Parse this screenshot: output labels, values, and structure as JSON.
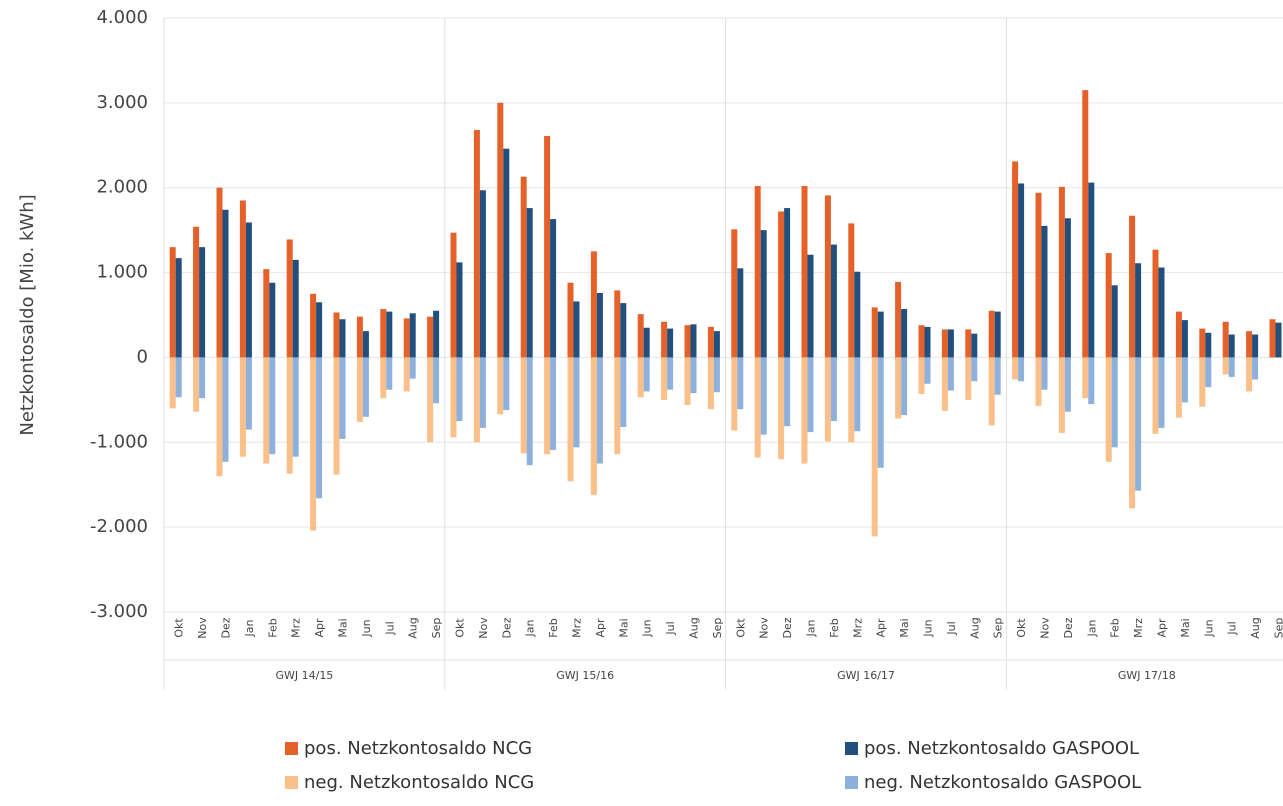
{
  "chart_data": {
    "type": "bar",
    "y_label": "Netzkontosaldo [Mio. kWh]",
    "categories": [
      "Okt",
      "Nov",
      "Dez",
      "Jan",
      "Feb",
      "Mrz",
      "Apr",
      "Mai",
      "Jun",
      "Jul",
      "Aug",
      "Sep",
      "Okt",
      "Nov",
      "Dez",
      "Jan",
      "Feb",
      "Mrz",
      "Apr",
      "Mai",
      "Jun",
      "Jul",
      "Aug",
      "Sep",
      "Okt",
      "Nov",
      "Dez",
      "Jan",
      "Feb",
      "Mrz",
      "Apr",
      "Mai",
      "Jun",
      "Jul",
      "Aug",
      "Sep",
      "Okt",
      "Nov",
      "Dez",
      "Jan",
      "Feb",
      "Mrz",
      "Apr",
      "Mai",
      "Jun",
      "Jul",
      "Aug",
      "Sep"
    ],
    "groups": [
      "GWJ 14/15",
      "GWJ 15/16",
      "GWJ 16/17",
      "GWJ 17/18"
    ],
    "series": [
      {
        "name": "pos. Netzkontosaldo NCG",
        "color": "#e4622a",
        "values": [
          1300,
          1540,
          2000,
          1850,
          1040,
          1390,
          750,
          530,
          480,
          570,
          460,
          480,
          1470,
          2680,
          3000,
          2130,
          2610,
          880,
          1250,
          790,
          510,
          420,
          380,
          360,
          1510,
          2020,
          1720,
          2020,
          1910,
          1580,
          590,
          890,
          380,
          330,
          330,
          550,
          2310,
          1940,
          2010,
          3150,
          1230,
          1670,
          1270,
          540,
          340,
          420,
          310,
          450
        ]
      },
      {
        "name": "pos. Netzkontosaldo GASPOOL",
        "color": "#21507f",
        "values": [
          1170,
          1300,
          1740,
          1590,
          880,
          1150,
          650,
          450,
          310,
          540,
          520,
          550,
          1120,
          1970,
          2460,
          1760,
          1630,
          660,
          760,
          640,
          350,
          340,
          390,
          310,
          1050,
          1500,
          1760,
          1210,
          1330,
          1010,
          540,
          570,
          360,
          330,
          280,
          540,
          2050,
          1550,
          1640,
          2060,
          850,
          1110,
          1060,
          440,
          290,
          270,
          270,
          410
        ]
      },
      {
        "name": "neg. Netzkontosaldo NCG",
        "color": "#fbbf8a",
        "values": [
          -600,
          -640,
          -1400,
          -1170,
          -1250,
          -1370,
          -2040,
          -1380,
          -760,
          -480,
          -400,
          -1000,
          -940,
          -1000,
          -670,
          -1130,
          -1140,
          -1460,
          -1620,
          -1140,
          -470,
          -500,
          -560,
          -610,
          -860,
          -1180,
          -1200,
          -1250,
          -990,
          -1000,
          -2110,
          -720,
          -430,
          -630,
          -500,
          -800,
          -260,
          -570,
          -890,
          -480,
          -1230,
          -1780,
          -900,
          -710,
          -580,
          -200,
          -400,
          null
        ]
      },
      {
        "name": "neg. Netzkontosaldo GASPOOL",
        "color": "#8db1dc",
        "values": [
          -470,
          -480,
          -1230,
          -850,
          -1140,
          -1170,
          -1660,
          -960,
          -700,
          -380,
          -250,
          -540,
          -750,
          -830,
          -620,
          -1270,
          -1090,
          -1060,
          -1250,
          -820,
          -400,
          -380,
          -420,
          -410,
          -610,
          -910,
          -810,
          -880,
          -750,
          -870,
          -1300,
          -680,
          -310,
          -390,
          -280,
          -440,
          -280,
          -380,
          -640,
          -550,
          -1060,
          -1570,
          -830,
          -530,
          -350,
          -230,
          -260,
          null
        ]
      }
    ],
    "ylim": [
      -3000,
      4000
    ],
    "yticks": [
      {
        "value": 4000,
        "label": "4.000"
      },
      {
        "value": 3000,
        "label": "3.000"
      },
      {
        "value": 2000,
        "label": "2.000"
      },
      {
        "value": 1000,
        "label": "1.000"
      },
      0,
      {
        "value": -1000,
        "label": "-1.000"
      },
      {
        "value": -2000,
        "label": "-2.000"
      },
      {
        "value": -3000,
        "label": "-3.000"
      }
    ],
    "grid": true,
    "legend": "bottom"
  }
}
